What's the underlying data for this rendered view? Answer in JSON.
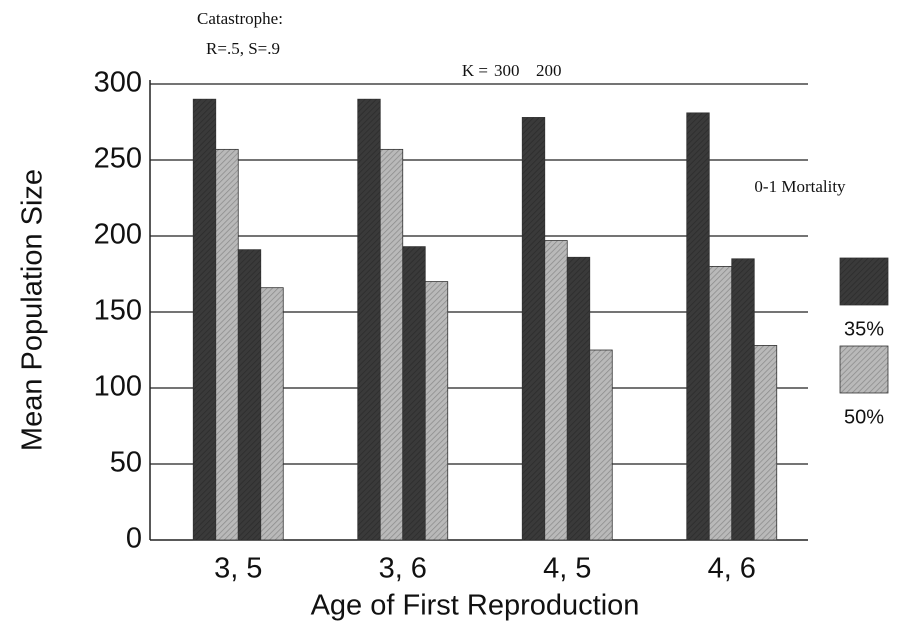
{
  "chart_data": {
    "type": "bar",
    "annotation_title": "Catastrophe:",
    "annotation_params": "R=.5, S=.9",
    "k_prefix": "K =",
    "y_label": "Mean Population Size",
    "x_label": "Age of First Reproduction",
    "legend_title": "0-1 Mortality",
    "categories": [
      "3, 5",
      "3, 6",
      "4, 5",
      "4, 6"
    ],
    "mortality_levels": [
      {
        "name": "35%",
        "color": "#3a3a3a"
      },
      {
        "name": "50%",
        "color": "#b9b9b9"
      }
    ],
    "k_groups": [
      {
        "label": "300",
        "values": [
          [
            290,
            290,
            278,
            281
          ],
          [
            257,
            257,
            197,
            180
          ]
        ]
      },
      {
        "label": "200",
        "values": [
          [
            191,
            193,
            186,
            185
          ],
          [
            166,
            170,
            125,
            128
          ]
        ]
      }
    ],
    "ylim": [
      0,
      300
    ],
    "yticks": [
      0,
      50,
      100,
      150,
      200,
      250,
      300
    ],
    "grid": true
  }
}
